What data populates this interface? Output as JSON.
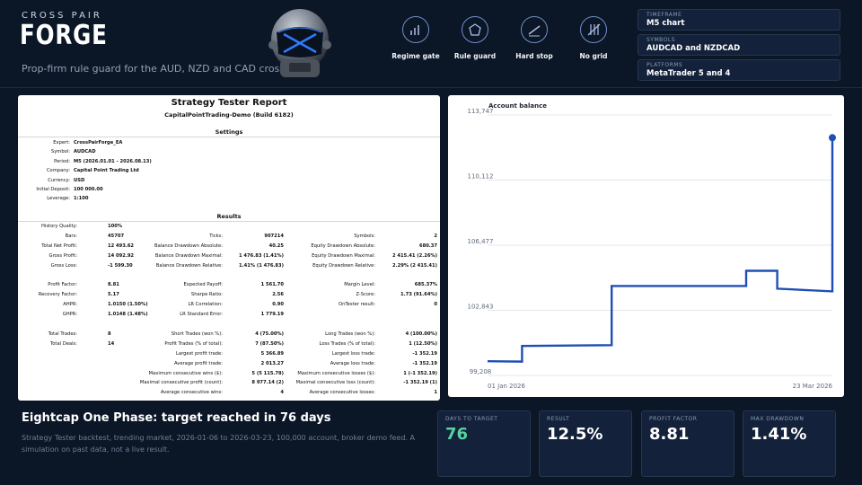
{
  "brand": {
    "kicker": "CROSS PAIR",
    "title": "FORGE",
    "tagline": "Prop-firm rule guard for the AUD, NZD and CAD crosses"
  },
  "features": [
    {
      "label": "Regime gate",
      "icon": "bar-chart-icon"
    },
    {
      "label": "Rule guard",
      "icon": "pentagon-shield-icon"
    },
    {
      "label": "Hard stop",
      "icon": "diagonal-stop-icon"
    },
    {
      "label": "No grid",
      "icon": "no-grid-icon"
    }
  ],
  "info": [
    {
      "label": "TIMEFRAME",
      "value": "M5 chart"
    },
    {
      "label": "SYMBOLS",
      "value": "AUDCAD and NZDCAD"
    },
    {
      "label": "PLATFORMS",
      "value": "MetaTrader 5 and 4"
    }
  ],
  "report": {
    "title": "Strategy Tester Report",
    "subtitle": "CapitalPointTrading-Demo (Build 6182)",
    "settings_heading": "Settings",
    "settings": [
      {
        "k": "Expert:",
        "v": "CrossPairForge_EA"
      },
      {
        "k": "Symbol:",
        "v": "AUDCAD"
      },
      {
        "k": "Period:",
        "v": "M5 (2026.01.01 - 2026.08.13)"
      },
      {
        "k": "Company:",
        "v": "Capital Point Trading Ltd"
      },
      {
        "k": "Currency:",
        "v": "USD"
      },
      {
        "k": "Initial Deposit:",
        "v": "100 000.00"
      },
      {
        "k": "Leverage:",
        "v": "1:100"
      }
    ],
    "results_heading": "Results",
    "col1": [
      {
        "k": "History Quality:",
        "v": "100%"
      },
      {
        "k": "Bars:",
        "v": "45707"
      },
      {
        "k": "Total Net Profit:",
        "v": "12 493.62"
      },
      {
        "k": "Gross Profit:",
        "v": "14 092.92"
      },
      {
        "k": "Gross Loss:",
        "v": "-1 599.30"
      },
      {
        "k": "",
        "v": ""
      },
      {
        "k": "Profit Factor:",
        "v": "8.81"
      },
      {
        "k": "Recovery Factor:",
        "v": "5.17"
      },
      {
        "k": "AHPR:",
        "v": "1.0150 (1.50%)"
      },
      {
        "k": "GHPR:",
        "v": "1.0148 (1.48%)"
      },
      {
        "k": "",
        "v": ""
      },
      {
        "k": "Total Trades:",
        "v": "8"
      },
      {
        "k": "Total Deals:",
        "v": "14"
      }
    ],
    "col2": [
      {
        "k": "",
        "v": ""
      },
      {
        "k": "Ticks:",
        "v": "907214"
      },
      {
        "k": "Balance Drawdown Absolute:",
        "v": "40.25"
      },
      {
        "k": "Balance Drawdown Maximal:",
        "v": "1 476.83 (1.41%)"
      },
      {
        "k": "Balance Drawdown Relative:",
        "v": "1.41% (1 476.83)"
      },
      {
        "k": "",
        "v": ""
      },
      {
        "k": "Expected Payoff:",
        "v": "1 561.70"
      },
      {
        "k": "Sharpe Ratio:",
        "v": "2.56"
      },
      {
        "k": "LR Correlation:",
        "v": "0.90"
      },
      {
        "k": "LR Standard Error:",
        "v": "1 779.19"
      },
      {
        "k": "",
        "v": ""
      },
      {
        "k": "Short Trades (won %):",
        "v": "4 (75.00%)"
      },
      {
        "k": "Profit Trades (% of total):",
        "v": "7 (87.50%)"
      },
      {
        "k": "Largest profit trade:",
        "v": "5 366.89"
      },
      {
        "k": "Average profit trade:",
        "v": "2 013.27"
      },
      {
        "k": "Maximum consecutive wins ($):",
        "v": "5 (5 115.78)"
      },
      {
        "k": "Maximal consecutive profit (count):",
        "v": "8 977.14 (2)"
      },
      {
        "k": "Average consecutive wins:",
        "v": "4"
      }
    ],
    "col3": [
      {
        "k": "",
        "v": ""
      },
      {
        "k": "Symbols:",
        "v": "2"
      },
      {
        "k": "Equity Drawdown Absolute:",
        "v": "680.37"
      },
      {
        "k": "Equity Drawdown Maximal:",
        "v": "2 415.41 (2.26%)"
      },
      {
        "k": "Equity Drawdown Relative:",
        "v": "2.29% (2 415.41)"
      },
      {
        "k": "",
        "v": ""
      },
      {
        "k": "Margin Level:",
        "v": "685.37%"
      },
      {
        "k": "Z-Score:",
        "v": "1.73 (91.64%)"
      },
      {
        "k": "OnTester result:",
        "v": "0"
      },
      {
        "k": "",
        "v": ""
      },
      {
        "k": "",
        "v": ""
      },
      {
        "k": "Long Trades (won %):",
        "v": "4 (100.00%)"
      },
      {
        "k": "Loss Trades (% of total):",
        "v": "1 (12.50%)"
      },
      {
        "k": "Largest loss trade:",
        "v": "-1 352.19"
      },
      {
        "k": "Average loss trade:",
        "v": "-1 352.19"
      },
      {
        "k": "Maximum consecutive losses ($):",
        "v": "1 (-1 352.19)"
      },
      {
        "k": "Maximal consecutive loss (count):",
        "v": "-1 352.19 (1)"
      },
      {
        "k": "Average consecutive losses:",
        "v": "1"
      }
    ]
  },
  "chart_data": {
    "type": "line",
    "title": "Account balance",
    "y_ticks": [
      "113,747",
      "110,112",
      "106,477",
      "102,843",
      "99,208"
    ],
    "ylim": [
      99208,
      113747
    ],
    "x_labels": [
      "01 Jan 2026",
      "23 Mar 2026"
    ],
    "x": [
      0,
      0.1,
      0.1,
      0.36,
      0.36,
      0.75,
      0.75,
      0.84,
      0.84,
      1.0,
      1.0
    ],
    "values": [
      100000,
      99980,
      100850,
      100900,
      104200,
      104200,
      105050,
      105050,
      104050,
      103900,
      112480
    ],
    "line_color": "#1f4fb5"
  },
  "footer": {
    "title": "Eightcap One Phase: target reached in 76 days",
    "description": "Strategy Tester backtest, trending market, 2026-01-06 to 2026-03-23, 100,000 account, broker demo feed. A simulation on past data, not a live result."
  },
  "metrics": [
    {
      "label": "DAYS TO TARGET",
      "value": "76",
      "accent": true
    },
    {
      "label": "RESULT",
      "value": "12.5%",
      "accent": false
    },
    {
      "label": "PROFIT FACTOR",
      "value": "8.81",
      "accent": false
    },
    {
      "label": "MAX DRAWDOWN",
      "value": "1.41%",
      "accent": false
    }
  ]
}
